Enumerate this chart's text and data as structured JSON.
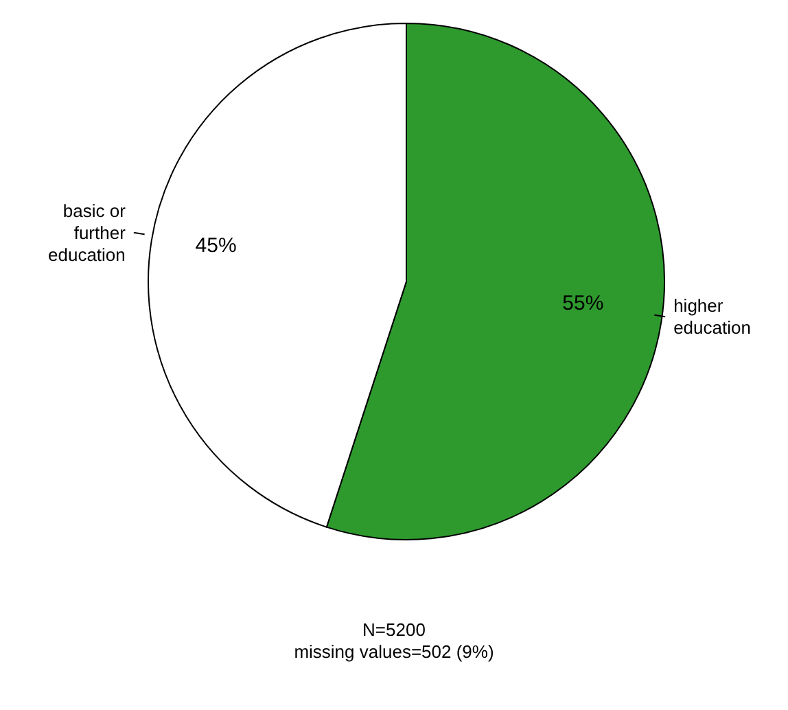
{
  "chart_data": {
    "type": "pie",
    "categories": [
      "higher education",
      "basic or further education"
    ],
    "values": [
      55,
      45
    ],
    "colors": [
      "#2e9a2e",
      "#ffffff"
    ],
    "value_labels": [
      "55%",
      "45%"
    ],
    "legend": false,
    "annotations": [
      "N=5200",
      "missing values=502 (9%)"
    ]
  }
}
